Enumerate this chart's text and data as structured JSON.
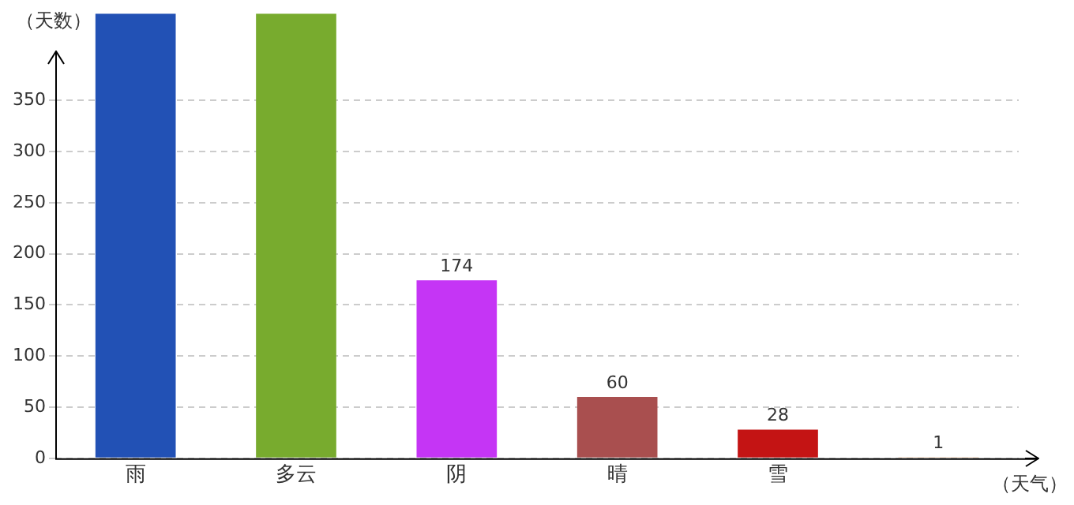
{
  "chart_data": {
    "type": "bar",
    "ylabel": "（天数）",
    "xlabel": "（天气）",
    "categories": [
      "雨",
      "多云",
      "阴",
      "晴",
      "雪",
      null
    ],
    "values": [
      435,
      435,
      174,
      60,
      28,
      1
    ],
    "colors": [
      "#2251b5",
      "#78ab2e",
      "#c535f5",
      "#a94f4f",
      "#c41414",
      "#d98a4a"
    ],
    "value_labels": [
      null,
      null,
      "174",
      "60",
      "28",
      "1"
    ],
    "ylim": [
      0,
      435
    ],
    "yticks": [
      0,
      50,
      100,
      150,
      200,
      250,
      300,
      350
    ],
    "grid": "y",
    "legend": false
  }
}
